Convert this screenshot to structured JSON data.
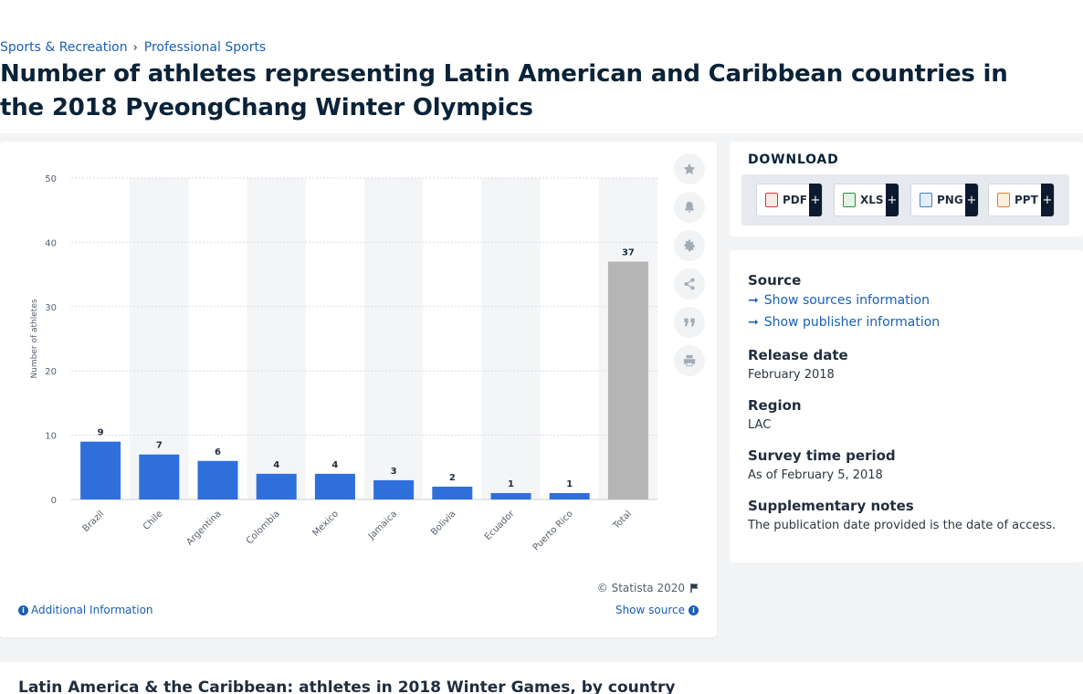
{
  "breadcrumb": {
    "items": [
      "Sports & Recreation",
      "Professional Sports"
    ],
    "separator": "›"
  },
  "page_title": "Number of athletes representing Latin American and Caribbean countries in the 2018 PyeongChang Winter Olympics",
  "chart_data": {
    "type": "bar",
    "categories": [
      "Brazil",
      "Chile",
      "Argentina",
      "Colombia",
      "Mexico",
      "Jamaica",
      "Bolivia",
      "Ecuador",
      "Puerto Rico",
      "Total"
    ],
    "values": [
      9,
      7,
      6,
      4,
      4,
      3,
      2,
      1,
      1,
      37
    ],
    "xlabel": "",
    "ylabel": "Number of athletes",
    "ylim": [
      0,
      50
    ],
    "yticks": [
      0,
      10,
      20,
      30,
      40,
      50
    ],
    "grid": true,
    "bar_color": "#2f6fdb",
    "total_bar_color": "#b5b5b5",
    "column_band_color": "#f4f5f7"
  },
  "chart_footer": {
    "copyright": "© Statista 2020",
    "additional_info": "Additional Information",
    "show_source": "Show source"
  },
  "download": {
    "title": "DOWNLOAD",
    "buttons": [
      {
        "label": "PDF",
        "plus": "+",
        "color": "#d9362b"
      },
      {
        "label": "XLS",
        "plus": "+",
        "color": "#2e8b3e"
      },
      {
        "label": "PNG",
        "plus": "+",
        "color": "#3e7cc7"
      },
      {
        "label": "PPT",
        "plus": "+",
        "color": "#e0802a"
      }
    ]
  },
  "meta": {
    "source_heading": "Source",
    "show_sources": "Show sources information",
    "show_publisher": "Show publisher information",
    "release_heading": "Release date",
    "release_value": "February 2018",
    "region_heading": "Region",
    "region_value": "LAC",
    "survey_heading": "Survey time period",
    "survey_value": "As of February 5, 2018",
    "notes_heading": "Supplementary notes",
    "notes_value": "The publication date provided is the date of access."
  },
  "bottom": {
    "title": "Latin America & the Caribbean: athletes in 2018 Winter Games, by country"
  },
  "icons": [
    "star-icon",
    "bell-icon",
    "gear-icon",
    "share-icon",
    "quote-icon",
    "print-icon",
    "flag-icon",
    "info-icon",
    "arrow-right-icon",
    "pdf-file-icon",
    "xls-file-icon",
    "png-file-icon",
    "ppt-file-icon"
  ]
}
